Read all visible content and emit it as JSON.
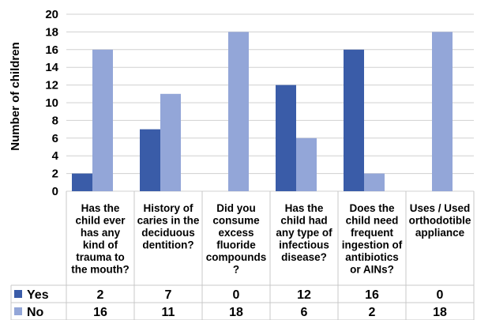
{
  "chart_data": {
    "type": "bar",
    "ylabel": "Number of children",
    "ylim": [
      0,
      20
    ],
    "yticks": [
      0,
      2,
      4,
      6,
      8,
      10,
      12,
      14,
      16,
      18,
      20
    ],
    "gridlines": true,
    "categories": [
      [
        "Has the",
        "child ever",
        "has any",
        "kind of",
        "trauma to",
        "the mouth?"
      ],
      [
        "History of",
        "caries in the",
        "deciduous",
        "dentition?"
      ],
      [
        "Did you",
        "consume",
        "excess",
        "fluoride",
        "compounds",
        "?"
      ],
      [
        "Has the",
        "child had",
        "any type of",
        "infectious",
        "disease?"
      ],
      [
        "Does the",
        "child need",
        "frequent",
        "ingestion of",
        "antibiotics",
        "or AINs?"
      ],
      [
        "Uses / Used",
        "orthodotible",
        "appliance"
      ]
    ],
    "series": [
      {
        "name": "Yes",
        "color": "#3a5ca8",
        "values": [
          2,
          7,
          0,
          12,
          16,
          0
        ]
      },
      {
        "name": "No",
        "color": "#93a6d8",
        "values": [
          16,
          11,
          18,
          6,
          2,
          18
        ]
      }
    ],
    "data_table": true,
    "legend": "left of data table"
  }
}
